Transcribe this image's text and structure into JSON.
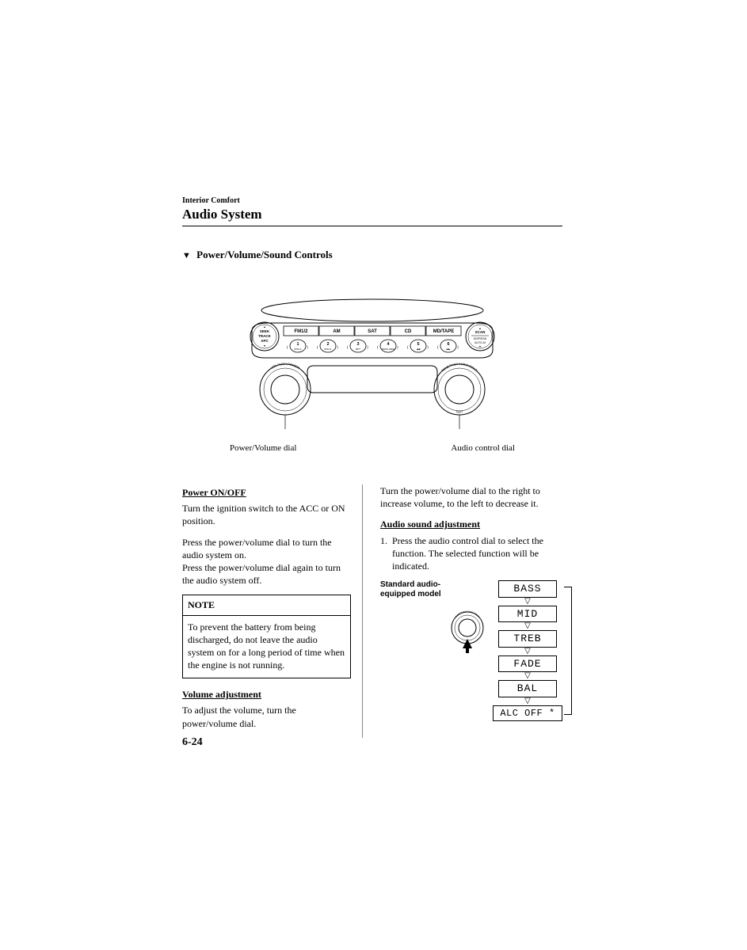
{
  "header": {
    "breadcrumb": "Interior Comfort",
    "title": "Audio System"
  },
  "subsection": {
    "title": "Power/Volume/Sound Controls"
  },
  "radio": {
    "seek_label": "SEEK\nTRACK\nAPC",
    "scan_line1": "SCAN",
    "scan_line2": "DISP/ESN\nAUTO-M",
    "source_buttons": [
      "FM1/2",
      "AM",
      "SAT",
      "CD",
      "MD/TAPE"
    ],
    "preset_buttons": [
      {
        "num": "1",
        "sub": "DISC∨"
      },
      {
        "num": "2",
        "sub": "DISC∧"
      },
      {
        "num": "3",
        "sub": "RPT"
      },
      {
        "num": "4",
        "sub": "PROG\nREW"
      },
      {
        "num": "5",
        "sub": "◀◀"
      },
      {
        "num": "6",
        "sub": "▶▶"
      }
    ],
    "vol_label": "VOL  PUSH POWER",
    "tune_label": "TUNE  PUSH AUDIO CONT.",
    "text_label": "TEXT",
    "label_left": "Power/Volume dial",
    "label_right": "Audio control dial"
  },
  "left_col": {
    "h1": "Power ON/OFF",
    "p1": "Turn the ignition switch to the ACC or ON position.",
    "p2": "Press the power/volume dial to turn the audio system on.",
    "p3": "Press the power/volume dial again to turn the audio system off.",
    "note_title": "NOTE",
    "note_body": "To prevent the battery from being discharged, do not leave the audio system on for a long period of time when the engine is not running.",
    "h2": "Volume adjustment",
    "p4": "To adjust the volume, turn the power/volume dial."
  },
  "right_col": {
    "p1": "Turn the power/volume dial to the right to increase volume, to the left to decrease it.",
    "h1": "Audio sound adjustment",
    "li1_num": "1.",
    "li1_text": "Press the audio control dial to select the function. The selected function will be indicated.",
    "std_label": "Standard audio-equipped model",
    "adjust_sequence": [
      "BASS",
      "MID",
      "TREB",
      "FADE",
      "BAL"
    ],
    "adjust_last": "ALC OFF *"
  },
  "page_number": "6-24",
  "colors": {
    "text": "#000000",
    "background": "#ffffff",
    "divider": "#888888"
  }
}
